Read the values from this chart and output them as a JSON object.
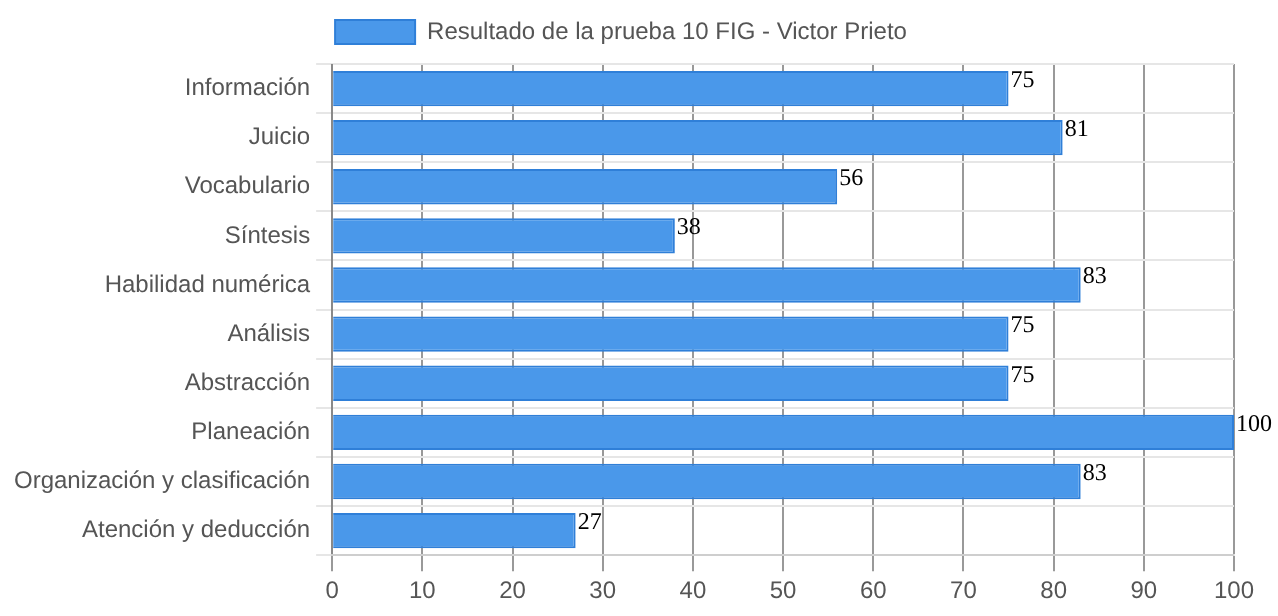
{
  "chart_data": {
    "type": "bar",
    "orientation": "horizontal",
    "categories": [
      "Información",
      "Juicio",
      "Vocabulario",
      "Síntesis",
      "Habilidad numérica",
      "Análisis",
      "Abstracción",
      "Planeación",
      "Organización y clasificación",
      "Atención y deducción"
    ],
    "series": [
      {
        "name": "Resultado de la prueba 10 FIG - Victor Prieto",
        "color": "#4a98ea",
        "values": [
          75,
          81,
          56,
          38,
          83,
          75,
          75,
          100,
          83,
          27
        ]
      }
    ],
    "xlim": [
      0,
      100
    ],
    "xticks": [
      0,
      10,
      20,
      30,
      40,
      50,
      60,
      70,
      80,
      90,
      100
    ],
    "grid": true,
    "legend": "top",
    "data_labels": true
  }
}
